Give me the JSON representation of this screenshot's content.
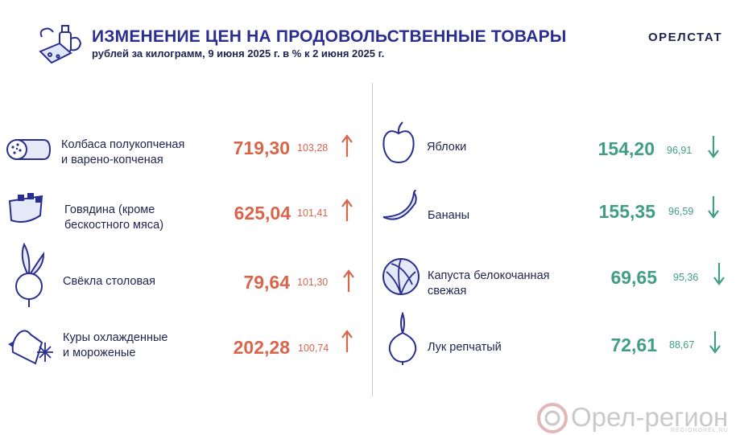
{
  "header": {
    "title": "ИЗМЕНЕНИЕ ЦЕН НА ПРОДОВОЛЬСТВЕННЫЕ ТОВАРЫ",
    "subtitle": "рублей за килограмм, 9 июня 2025 г. в % к 2 июня 2025 г.",
    "brand": "ОРЕЛСТАТ"
  },
  "colors": {
    "accent": "#2a2f8f",
    "up": "#d9654b",
    "down": "#3f9e84",
    "icon": "#2a2f8f"
  },
  "left_items": [
    {
      "label_line1": "Колбаса полукопченая",
      "label_line2": "и варено-копченая",
      "price": "719,30",
      "pct": "103,28",
      "trend": "up",
      "icon": "sausage-icon"
    },
    {
      "label_line1": "Говядина (кроме",
      "label_line2": "бескостного мяса)",
      "price": "625,04",
      "pct": "101,41",
      "trend": "up",
      "icon": "beef-icon"
    },
    {
      "label_line1": "Свёкла столовая",
      "label_line2": "",
      "price": "79,64",
      "pct": "101,30",
      "trend": "up",
      "icon": "beet-icon"
    },
    {
      "label_line1": "Куры охлажденные",
      "label_line2": "и мороженые",
      "price": "202,28",
      "pct": "100,74",
      "trend": "up",
      "icon": "chicken-icon"
    }
  ],
  "right_items": [
    {
      "label_line1": "Яблоки",
      "label_line2": "",
      "price": "154,20",
      "pct": "96,91",
      "trend": "down",
      "icon": "apple-icon"
    },
    {
      "label_line1": "Бананы",
      "label_line2": "",
      "price": "155,35",
      "pct": "96,59",
      "trend": "down",
      "icon": "banana-icon"
    },
    {
      "label_line1": "Капуста белокочанная",
      "label_line2": "свежая",
      "price": "69,65",
      "pct": "95,36",
      "trend": "down",
      "icon": "cabbage-icon"
    },
    {
      "label_line1": "Лук репчатый",
      "label_line2": "",
      "price": "72,61",
      "pct": "88,67",
      "trend": "down",
      "icon": "onion-icon"
    }
  ],
  "watermark": {
    "text": "Орел-регион",
    "site": "REGIONOREL.RU"
  }
}
